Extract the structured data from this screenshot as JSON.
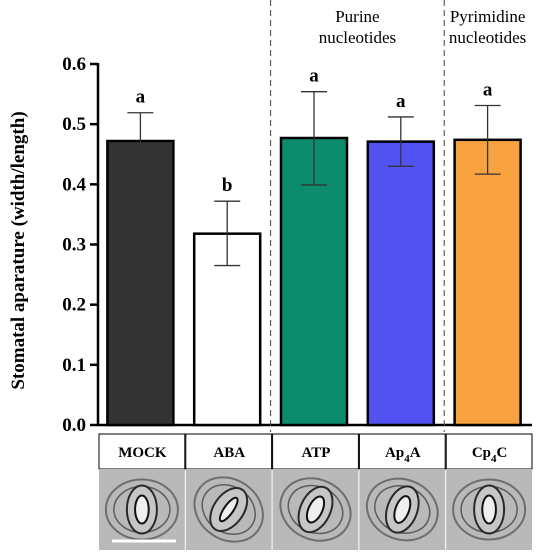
{
  "chart_data": {
    "type": "bar",
    "ylabel": "Stomatal aparature (width/length)",
    "ylim": [
      0,
      0.6
    ],
    "yticks": [
      "0.0",
      "0.1",
      "0.2",
      "0.3",
      "0.4",
      "0.5",
      "0.6"
    ],
    "categories": [
      {
        "base": "MOCK",
        "sub": "",
        "tail": ""
      },
      {
        "base": "ABA",
        "sub": "",
        "tail": ""
      },
      {
        "base": "ATP",
        "sub": "",
        "tail": ""
      },
      {
        "base": "Ap",
        "sub": "4",
        "tail": "A"
      },
      {
        "base": "Cp",
        "sub": "4",
        "tail": "C"
      }
    ],
    "values": [
      0.472,
      0.318,
      0.477,
      0.471,
      0.474
    ],
    "error_low": [
      0.426,
      0.265,
      0.399,
      0.43,
      0.417
    ],
    "error_high": [
      0.519,
      0.372,
      0.554,
      0.512,
      0.531
    ],
    "significance": [
      "a",
      "b",
      "a",
      "a",
      "a"
    ],
    "bar_colors": [
      "#333333",
      "#ffffff",
      "#0c8c6c",
      "#5252f2",
      "#f7a23e"
    ],
    "groups": [
      {
        "lines": [
          "Purine",
          "nucleotides"
        ]
      },
      {
        "lines": [
          "Pyrimidine",
          "nucleotides"
        ]
      }
    ],
    "grid": false
  }
}
